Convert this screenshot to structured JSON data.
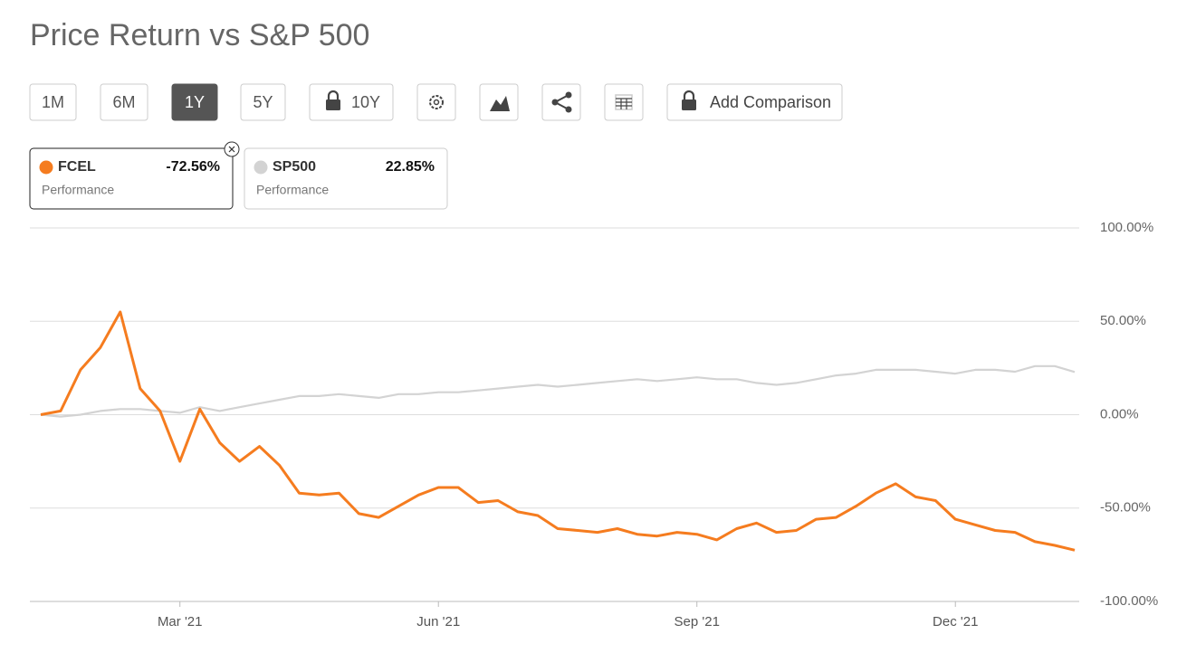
{
  "toolbar": {
    "ranges": [
      "1M",
      "6M",
      "1Y",
      "5Y",
      "10Y"
    ],
    "selected": "1Y",
    "add_comparison": "Add Comparison"
  },
  "chart_data": {
    "type": "line",
    "title": "Price Return vs S&P 500",
    "categories": [
      null,
      null,
      null,
      null,
      null,
      null,
      null,
      "Mar '21",
      null,
      null,
      null,
      null,
      null,
      null,
      null,
      null,
      null,
      null,
      null,
      null,
      "Jun '21",
      null,
      null,
      null,
      null,
      null,
      null,
      null,
      null,
      null,
      null,
      null,
      null,
      "Sep '21",
      null,
      null,
      null,
      null,
      null,
      null,
      null,
      null,
      null,
      null,
      null,
      null,
      "Dec '21",
      null,
      null,
      null,
      null,
      null,
      null
    ],
    "series": [
      {
        "name": "FCEL",
        "color": "#f57c1f",
        "change": -72.56,
        "change_label": "-72.56%",
        "caption": "Performance",
        "values": [
          0,
          2,
          24,
          36,
          55,
          14,
          2,
          -25,
          3,
          -15,
          -25,
          -17,
          -27,
          -42,
          -43,
          -42,
          -53,
          -55,
          -49,
          -43,
          -39,
          -39,
          -47,
          -46,
          -52,
          -54,
          -61,
          -62,
          -63,
          -61,
          -64,
          -65,
          -63,
          -64,
          -67,
          -61,
          -58,
          -63,
          -62,
          -56,
          -55,
          -49,
          -42,
          -37,
          -44,
          -46,
          -56,
          -59,
          -62,
          -63,
          -68,
          -70,
          -72.56
        ]
      },
      {
        "name": "SP500",
        "color": "#d3d3d3",
        "change": 22.85,
        "change_label": "22.85%",
        "caption": "Performance",
        "values": [
          0,
          -1,
          0,
          2,
          3,
          3,
          2,
          1,
          4,
          2,
          4,
          6,
          8,
          10,
          10,
          11,
          10,
          9,
          11,
          11,
          12,
          12,
          13,
          14,
          15,
          16,
          15,
          16,
          17,
          18,
          19,
          18,
          19,
          20,
          19,
          19,
          17,
          16,
          17,
          19,
          21,
          22,
          24,
          24,
          24,
          23,
          22,
          24,
          24,
          23,
          26,
          26,
          22.85
        ]
      }
    ],
    "ylim": [
      -100,
      100
    ],
    "yticks": [
      {
        "value": 100,
        "label": "100.00%"
      },
      {
        "value": 50,
        "label": "50.00%"
      },
      {
        "value": 0,
        "label": "0.00%"
      },
      {
        "value": -50,
        "label": "-50.00%"
      },
      {
        "value": -100,
        "label": "-100.00%"
      }
    ],
    "grid": true
  }
}
